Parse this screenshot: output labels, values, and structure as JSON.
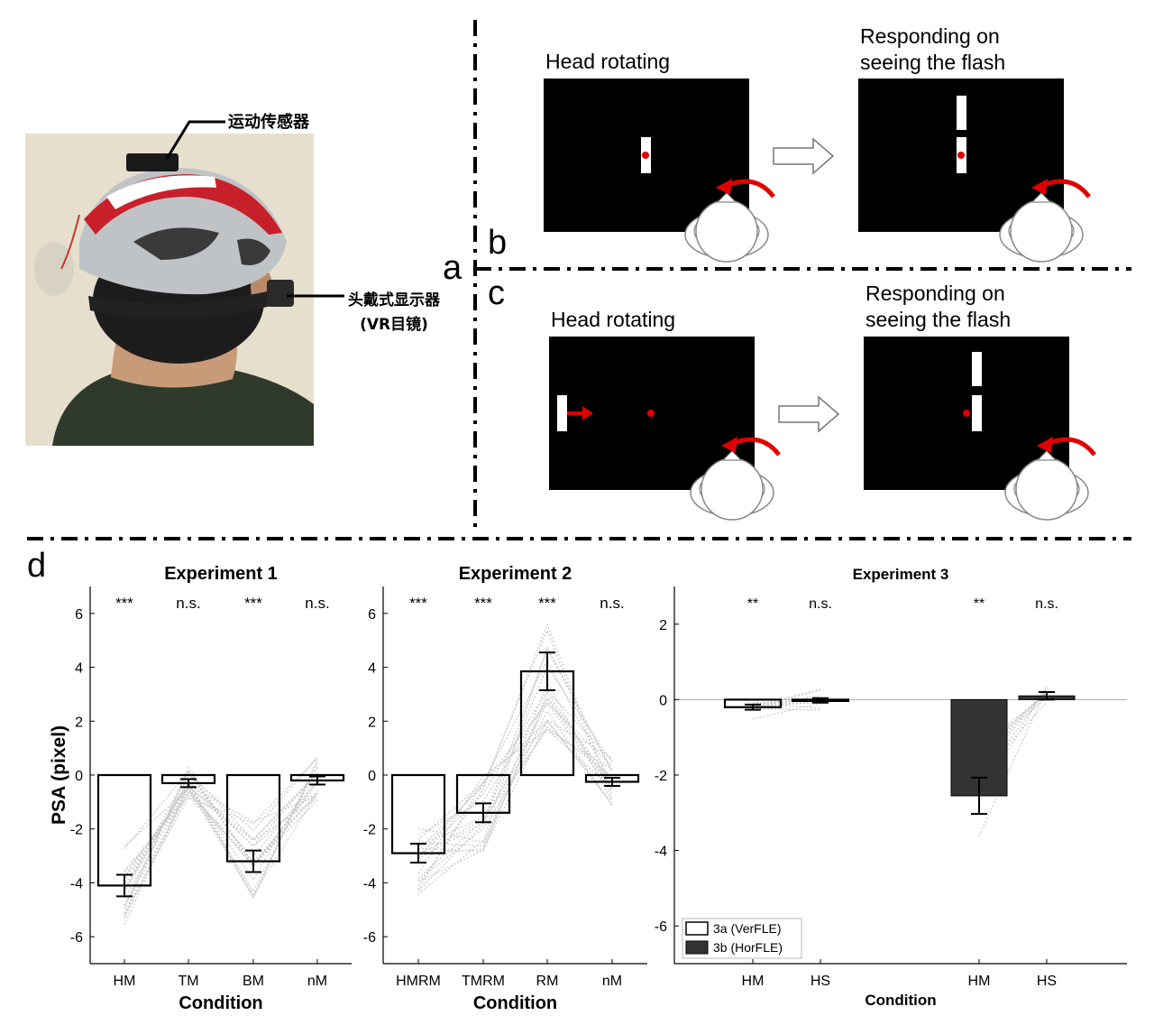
{
  "panels": {
    "a": {
      "letter": "a",
      "label_sensor": "运动传感器",
      "label_hmd_line1": "头戴式显示器",
      "label_hmd_line2": "(VR目镜)"
    },
    "b": {
      "letter": "b",
      "left_title": "Head rotating",
      "right_title_line1": "Responding on",
      "right_title_line2": "seeing the flash"
    },
    "c": {
      "letter": "c",
      "left_title": "Head rotating",
      "right_title_line1": "Responding on",
      "right_title_line2": "seeing the flash"
    },
    "d": {
      "letter": "d"
    }
  },
  "colors": {
    "red": "#e00000",
    "dark_bar": "#333333",
    "gray_line": "#c8c8c8",
    "helmet_red": "#c8202a",
    "helmet_silver": "#bfc3c6",
    "backdrop": "#e7dfcd",
    "shirt": "#2f3a2c"
  },
  "chart_data": [
    {
      "type": "bar",
      "title": "Experiment 1",
      "xlabel": "Condition",
      "ylabel": "PSA (pixel)",
      "ylim": [
        -7,
        7
      ],
      "yticks": [
        -6,
        -4,
        -2,
        0,
        2,
        4,
        6
      ],
      "categories": [
        "HM",
        "TM",
        "BM",
        "nM"
      ],
      "values": [
        -4.1,
        -0.3,
        -3.2,
        -0.2
      ],
      "errors": [
        0.4,
        0.15,
        0.4,
        0.15
      ],
      "significance": [
        "***",
        "n.s.",
        "***",
        "n.s."
      ]
    },
    {
      "type": "bar",
      "title": "Experiment 2",
      "xlabel": "Condition",
      "ylabel": "",
      "ylim": [
        -7,
        7
      ],
      "yticks": [
        -6,
        -4,
        -2,
        0,
        2,
        4,
        6
      ],
      "categories": [
        "HMRM",
        "TMRM",
        "RM",
        "nM"
      ],
      "values": [
        -2.9,
        -1.4,
        3.85,
        -0.25
      ],
      "errors": [
        0.35,
        0.35,
        0.7,
        0.15
      ],
      "significance": [
        "***",
        "***",
        "***",
        "n.s."
      ]
    },
    {
      "type": "bar",
      "title": "Experiment 3",
      "xlabel": "Condition",
      "ylabel": "",
      "ylim": [
        -7,
        3
      ],
      "yticks": [
        -6,
        -4,
        -2,
        0,
        2
      ],
      "categories": [
        "HM",
        "HS",
        "HM",
        "HS"
      ],
      "values": [
        -0.2,
        -0.02,
        -2.55,
        0.1
      ],
      "errors": [
        0.07,
        0.06,
        0.48,
        0.1
      ],
      "significance": [
        "**",
        "n.s.",
        "**",
        "n.s."
      ],
      "bar_fill": [
        "white",
        "white",
        "dark",
        "dark"
      ],
      "legend": [
        "3a (VerFLE)",
        "3b (HorFLE)"
      ],
      "legend_position": "bottom-left"
    }
  ]
}
